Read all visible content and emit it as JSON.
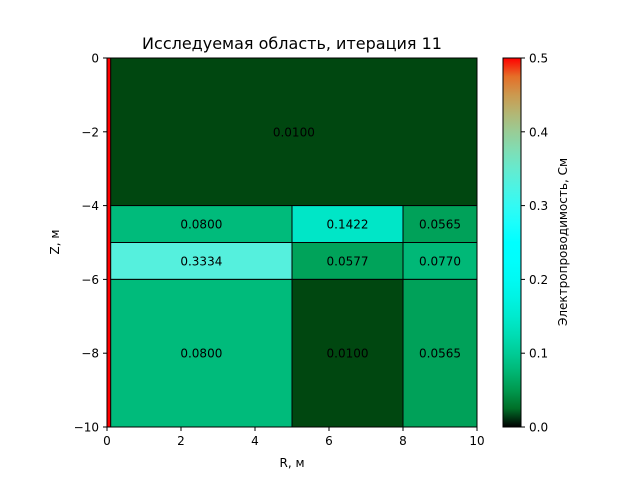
{
  "chart_data": {
    "type": "heatmap",
    "title": "Исследуемая область, итерация  11",
    "xlabel": "R, м",
    "ylabel": "Z, м",
    "xlim": [
      0,
      10
    ],
    "ylim": [
      -10,
      0
    ],
    "x_ticks": [
      0,
      2,
      4,
      6,
      8,
      10
    ],
    "y_ticks": [
      0,
      -2,
      -4,
      -6,
      -8,
      -10
    ],
    "x_tick_labels": [
      "0",
      "2",
      "4",
      "6",
      "8",
      "10"
    ],
    "y_tick_labels": [
      "0",
      "−2",
      "−4",
      "−6",
      "−8",
      "−10"
    ],
    "colormap": "rainbow",
    "cells": [
      {
        "r": [
          0.1,
          10
        ],
        "z": [
          0,
          -4
        ],
        "value": 0.01,
        "label": "0.0100"
      },
      {
        "r": [
          0.1,
          5
        ],
        "z": [
          -4,
          -5
        ],
        "value": 0.08,
        "label": "0.0800"
      },
      {
        "r": [
          5,
          8
        ],
        "z": [
          -4,
          -5
        ],
        "value": 0.1422,
        "label": "0.1422"
      },
      {
        "r": [
          8,
          10
        ],
        "z": [
          -4,
          -5
        ],
        "value": 0.0565,
        "label": "0.0565"
      },
      {
        "r": [
          0.1,
          5
        ],
        "z": [
          -5,
          -6
        ],
        "value": 0.3334,
        "label": "0.3334"
      },
      {
        "r": [
          5,
          8
        ],
        "z": [
          -5,
          -6
        ],
        "value": 0.0577,
        "label": "0.0577"
      },
      {
        "r": [
          8,
          10
        ],
        "z": [
          -5,
          -6
        ],
        "value": 0.077,
        "label": "0.0770"
      },
      {
        "r": [
          0.1,
          5
        ],
        "z": [
          -6,
          -10
        ],
        "value": 0.08,
        "label": "0.0800"
      },
      {
        "r": [
          5,
          8
        ],
        "z": [
          -6,
          -10
        ],
        "value": 0.01,
        "label": "0.0100"
      },
      {
        "r": [
          8,
          10
        ],
        "z": [
          -6,
          -10
        ],
        "value": 0.0565,
        "label": "0.0565"
      }
    ],
    "well": {
      "r": [
        0,
        0.1
      ],
      "z": [
        0,
        -10
      ],
      "value": 0.5
    },
    "colorbar": {
      "label": "Электропроводимость, См",
      "range": [
        0.0,
        0.5
      ],
      "ticks": [
        0.0,
        0.1,
        0.2,
        0.3,
        0.4,
        0.5
      ],
      "tick_labels": [
        "0.0",
        "0.1",
        "0.2",
        "0.3",
        "0.4",
        "0.5"
      ]
    }
  }
}
